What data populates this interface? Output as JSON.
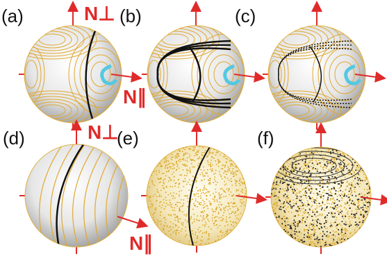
{
  "panels": [
    {
      "label": "(a)",
      "perp": "N⊥",
      "par": "N∥"
    },
    {
      "label": "(b)"
    },
    {
      "label": "(c)"
    },
    {
      "label": "(d)",
      "perp": "N⊥",
      "par": "N∥"
    },
    {
      "label": "(e)"
    },
    {
      "label": "(f)"
    }
  ]
}
